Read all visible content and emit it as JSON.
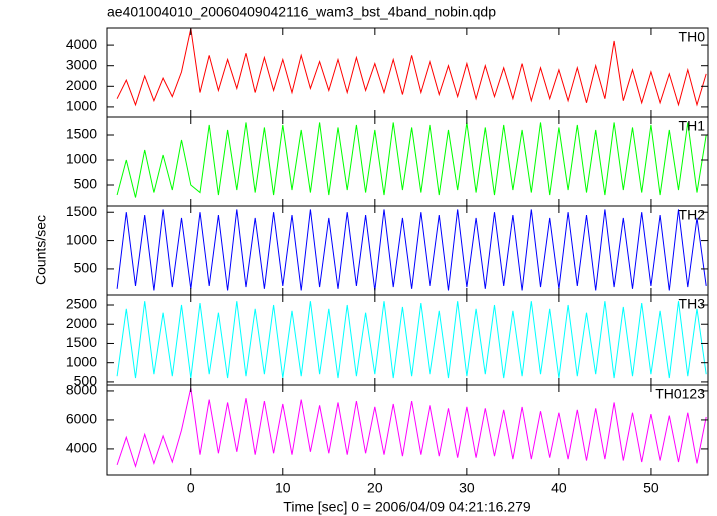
{
  "chart_data": {
    "type": "line",
    "title": "ae401004010_20060409042116_wam3_bst_4band_nobin.qdp",
    "xlabel": "Time [sec] 0 = 2006/04/09 04:21:16.279",
    "ylabel": "Counts/sec",
    "xlim": [
      -9.1,
      56.2
    ],
    "xticks": [
      0,
      10,
      20,
      30,
      40,
      50
    ],
    "x": [
      -8,
      -7,
      -6,
      -5,
      -4,
      -3,
      -2,
      -1,
      0,
      1,
      2,
      3,
      4,
      5,
      6,
      7,
      8,
      9,
      10,
      11,
      12,
      13,
      14,
      15,
      16,
      17,
      18,
      19,
      20,
      21,
      22,
      23,
      24,
      25,
      26,
      27,
      28,
      29,
      30,
      31,
      32,
      33,
      34,
      35,
      36,
      37,
      38,
      39,
      40,
      41,
      42,
      43,
      44,
      45,
      46,
      47,
      48,
      49,
      50,
      51,
      52,
      53,
      54,
      55,
      56
    ],
    "panels": [
      {
        "name": "TH0",
        "color": "#ff0000",
        "ylim": [
          510,
          4830
        ],
        "yticks": [
          1000,
          2000,
          3000,
          4000
        ],
        "values": [
          1400,
          2300,
          1100,
          2500,
          1300,
          2400,
          1500,
          2700,
          4800,
          1700,
          3500,
          1800,
          3300,
          1900,
          3600,
          1700,
          3400,
          1800,
          3300,
          1700,
          3500,
          1900,
          3200,
          1800,
          3300,
          1700,
          3400,
          1800,
          3100,
          1700,
          3300,
          1600,
          3500,
          1700,
          3200,
          1600,
          3000,
          1500,
          3100,
          1400,
          3000,
          1500,
          2900,
          1400,
          3100,
          1300,
          2900,
          1400,
          2800,
          1300,
          2900,
          1200,
          3000,
          1400,
          4200,
          1300,
          2800,
          1200,
          2700,
          1200,
          2600,
          1100,
          2800,
          1100,
          2600
        ]
      },
      {
        "name": "TH1",
        "color": "#00ff00",
        "ylim": [
          80,
          1860
        ],
        "yticks": [
          500,
          1000,
          1500
        ],
        "values": [
          300,
          1000,
          250,
          1200,
          350,
          1100,
          400,
          1400,
          500,
          350,
          1700,
          300,
          1600,
          400,
          1750,
          350,
          1650,
          300,
          1700,
          400,
          1600,
          350,
          1750,
          300,
          1650,
          400,
          1700,
          350,
          1600,
          300,
          1750,
          400,
          1650,
          350,
          1700,
          300,
          1600,
          400,
          1750,
          350,
          1650,
          300,
          1700,
          400,
          1600,
          350,
          1750,
          300,
          1650,
          400,
          1700,
          350,
          1600,
          300,
          1750,
          400,
          1650,
          350,
          1700,
          300,
          1600,
          400,
          1750,
          350,
          1500
        ]
      },
      {
        "name": "TH2",
        "color": "#0000ff",
        "ylim": [
          40,
          1610
        ],
        "yticks": [
          500,
          1000,
          1500
        ],
        "values": [
          150,
          1500,
          200,
          1450,
          120,
          1550,
          180,
          1400,
          150,
          1500,
          200,
          1450,
          120,
          1550,
          180,
          1400,
          150,
          1500,
          200,
          1450,
          120,
          1550,
          180,
          1400,
          150,
          1500,
          200,
          1450,
          120,
          1550,
          180,
          1400,
          150,
          1500,
          200,
          1450,
          120,
          1550,
          180,
          1400,
          150,
          1500,
          200,
          1450,
          120,
          1550,
          180,
          1400,
          150,
          1500,
          200,
          1450,
          120,
          1550,
          180,
          1400,
          150,
          1500,
          200,
          1450,
          120,
          1550,
          180,
          1400,
          200
        ]
      },
      {
        "name": "TH3",
        "color": "#00ffff",
        "ylim": [
          420,
          2760
        ],
        "yticks": [
          500,
          1000,
          1500,
          2000,
          2500
        ],
        "values": [
          650,
          2400,
          600,
          2600,
          700,
          2300,
          650,
          2500,
          600,
          2550,
          700,
          2300,
          600,
          2600,
          650,
          2400,
          700,
          2500,
          600,
          2350,
          650,
          2600,
          700,
          2400,
          600,
          2500,
          650,
          2300,
          700,
          2600,
          600,
          2450,
          650,
          2550,
          700,
          2350,
          600,
          2600,
          650,
          2400,
          700,
          2500,
          600,
          2350,
          650,
          2600,
          700,
          2400,
          600,
          2500,
          650,
          2300,
          700,
          2600,
          600,
          2450,
          650,
          2550,
          700,
          2350,
          600,
          2600,
          650,
          2400,
          700
        ]
      },
      {
        "name": "TH0123",
        "color": "#ff00ff",
        "ylim": [
          2200,
          8410
        ],
        "yticks": [
          4000,
          6000,
          8000
        ],
        "values": [
          2900,
          4800,
          2800,
          5000,
          3000,
          4900,
          3100,
          5300,
          8200,
          3600,
          7400,
          3700,
          7200,
          3800,
          7500,
          3600,
          7300,
          3700,
          7100,
          3600,
          7400,
          3800,
          7000,
          3700,
          7200,
          3600,
          7300,
          3700,
          6900,
          3600,
          7100,
          3500,
          7300,
          3600,
          7000,
          3500,
          6800,
          3400,
          6900,
          3400,
          6800,
          3500,
          6700,
          3300,
          6900,
          3300,
          6600,
          3400,
          6500,
          3300,
          6700,
          3200,
          6800,
          3300,
          7200,
          3200,
          6500,
          3100,
          6400,
          3200,
          6300,
          3100,
          6500,
          3000,
          6200
        ]
      }
    ]
  }
}
